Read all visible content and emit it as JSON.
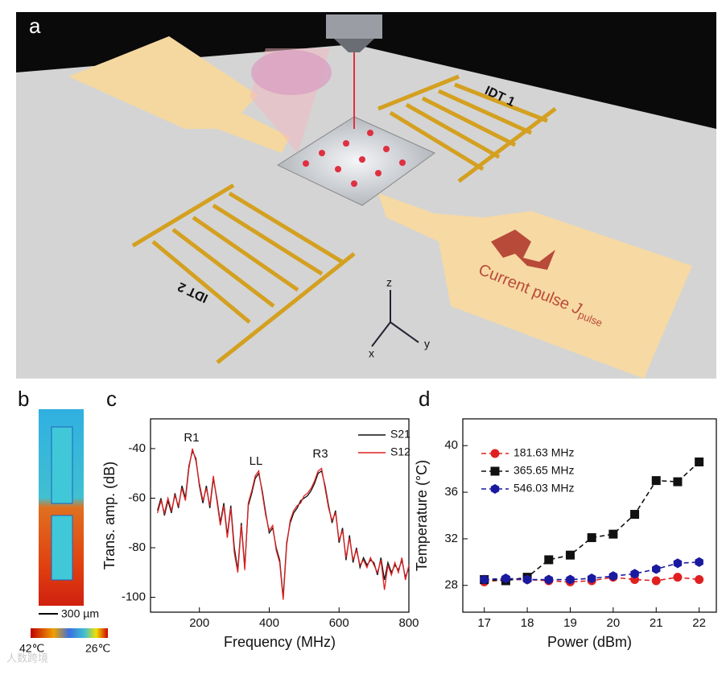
{
  "panel_labels": [
    "a",
    "b",
    "c",
    "d"
  ],
  "figure_a": {
    "idt1": "IDT 1",
    "idt2": "IDT 2",
    "current_pulse": "Current pulse",
    "current_symbol": "J",
    "current_subscript": "pulse",
    "axes": [
      "x",
      "y",
      "z"
    ]
  },
  "figure_b": {
    "scale_bar": "300 µm",
    "colorbar_min_label": "42℃",
    "colorbar_max_label": "26℃"
  },
  "watermark": "人数跨境",
  "chart_data": [
    {
      "type": "line",
      "x_label": "Frequency (MHz)",
      "y_label": "Trans. amp. (dB)",
      "annotations": [
        "R1",
        "LL",
        "R3"
      ],
      "legend": "upper right",
      "xlim": [
        60,
        800
      ],
      "ylim": [
        -106,
        -28
      ],
      "xticks": [
        200,
        400,
        600,
        800
      ],
      "yticks": [
        -40,
        -60,
        -80,
        -100
      ],
      "x": [
        80,
        90,
        100,
        110,
        120,
        130,
        140,
        150,
        160,
        170,
        180,
        190,
        200,
        210,
        220,
        230,
        240,
        250,
        260,
        270,
        280,
        290,
        300,
        310,
        320,
        330,
        340,
        350,
        360,
        370,
        380,
        390,
        400,
        410,
        420,
        430,
        440,
        450,
        460,
        470,
        480,
        490,
        500,
        510,
        520,
        530,
        540,
        550,
        560,
        570,
        580,
        590,
        600,
        610,
        620,
        630,
        640,
        650,
        660,
        670,
        680,
        690,
        700,
        710,
        720,
        730,
        740,
        750,
        760,
        770,
        780,
        790,
        800
      ],
      "series": [
        {
          "name": "S21",
          "color": "#111111",
          "values": [
            -65,
            -60,
            -67,
            -61,
            -66,
            -58,
            -64,
            -55,
            -60,
            -47,
            -41,
            -44,
            -55,
            -62,
            -55,
            -64,
            -52,
            -60,
            -70,
            -62,
            -75,
            -63,
            -80,
            -89,
            -70,
            -88,
            -63,
            -58,
            -52,
            -50,
            -57,
            -66,
            -74,
            -72,
            -80,
            -85,
            -100,
            -78,
            -70,
            -66,
            -64,
            -61,
            -60,
            -59,
            -57,
            -54,
            -50,
            -49,
            -55,
            -63,
            -70,
            -65,
            -78,
            -72,
            -85,
            -75,
            -86,
            -80,
            -88,
            -84,
            -87,
            -85,
            -86,
            -91,
            -84,
            -93,
            -86,
            -90,
            -87,
            -89,
            -85,
            -92,
            -88
          ]
        },
        {
          "name": "S12",
          "color": "#e02020",
          "values": [
            -66,
            -61,
            -66,
            -60,
            -65,
            -59,
            -63,
            -56,
            -61,
            -48,
            -40,
            -45,
            -54,
            -61,
            -56,
            -63,
            -51,
            -61,
            -71,
            -63,
            -76,
            -64,
            -82,
            -90,
            -71,
            -89,
            -62,
            -57,
            -51,
            -49,
            -58,
            -67,
            -73,
            -71,
            -81,
            -86,
            -101,
            -79,
            -69,
            -65,
            -63,
            -62,
            -59,
            -58,
            -56,
            -53,
            -49,
            -48,
            -56,
            -64,
            -69,
            -66,
            -77,
            -73,
            -84,
            -76,
            -85,
            -81,
            -87,
            -85,
            -88,
            -84,
            -87,
            -90,
            -85,
            -97,
            -87,
            -91,
            -86,
            -90,
            -84,
            -93,
            -87
          ]
        }
      ]
    },
    {
      "type": "line",
      "x_label": "Power (dBm)",
      "y_label": "Temperature (°C)",
      "legend": "upper left",
      "xlim": [
        16.5,
        22.4
      ],
      "ylim": [
        25.7,
        42.3
      ],
      "xticks": [
        17,
        18,
        19,
        20,
        21,
        22
      ],
      "yticks": [
        28,
        32,
        36,
        40
      ],
      "x": [
        17,
        17.5,
        18,
        18.5,
        19,
        19.5,
        20,
        20.5,
        21,
        21.5,
        22
      ],
      "series": [
        {
          "name": "181.63 MHz",
          "color": "#e02020",
          "marker": "circle",
          "values": [
            28.3,
            28.5,
            28.5,
            28.4,
            28.3,
            28.4,
            28.7,
            28.5,
            28.4,
            28.7,
            28.5
          ]
        },
        {
          "name": "365.65 MHz",
          "color": "#111111",
          "marker": "square",
          "values": [
            28.5,
            28.4,
            28.7,
            30.2,
            30.6,
            32.1,
            32.4,
            34.1,
            37.0,
            36.9,
            38.6
          ]
        },
        {
          "name": "546.03 MHz",
          "color": "#1a1aa0",
          "marker": "hexagon",
          "values": [
            28.5,
            28.6,
            28.5,
            28.5,
            28.5,
            28.6,
            28.8,
            29.0,
            29.4,
            29.9,
            30.0
          ]
        }
      ]
    }
  ]
}
